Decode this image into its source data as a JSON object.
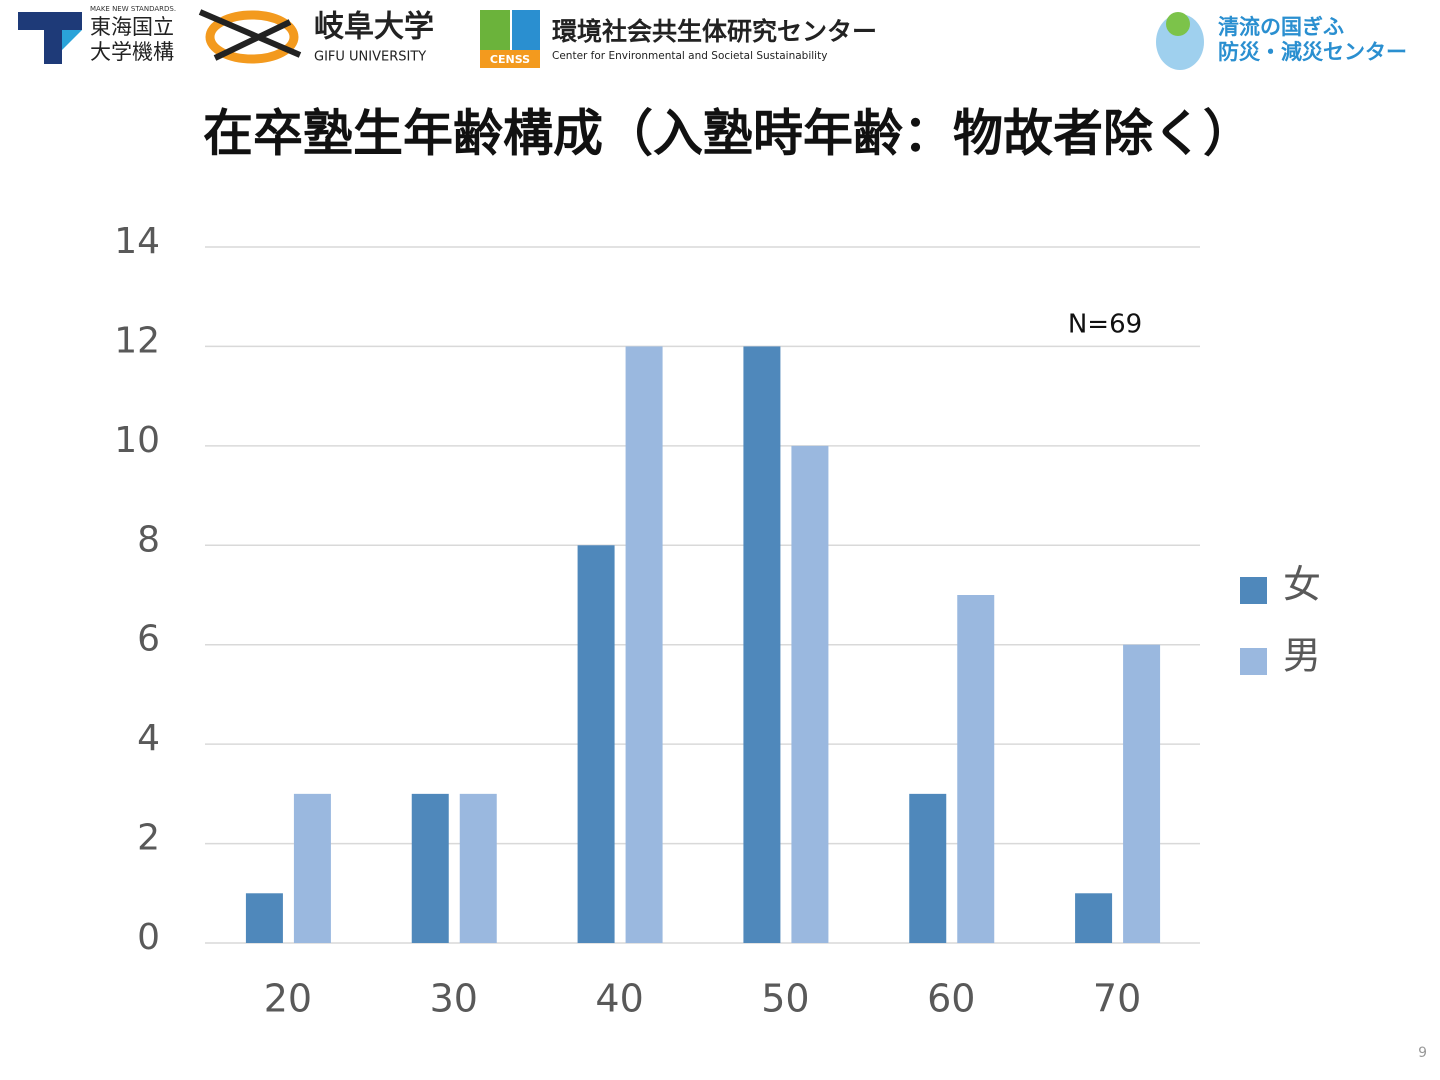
{
  "header": {
    "tokai_tagline": "MAKE NEW STANDARDS.",
    "tokai_name_1": "東海国立",
    "tokai_name_2": "大学機構",
    "gifu_name": "岐阜大学",
    "gifu_name_en": "GIFU UNIVERSITY",
    "censs_badge": "CENSS",
    "censs_name": "環境社会共生体研究センター",
    "censs_name_en": "Center for Environmental and Societal Sustainability",
    "bosai_name_1": "清流の国ぎふ",
    "bosai_name_2": "防災・減災センター"
  },
  "page_number": "9",
  "chart_data": {
    "type": "bar",
    "title": "在卒塾生年齢構成（入塾時年齢：物故者除く）",
    "annotation": "N=69",
    "categories": [
      "20",
      "30",
      "40",
      "50",
      "60",
      "70"
    ],
    "series": [
      {
        "name": "女",
        "color": "#4f88bb",
        "values": [
          1,
          3,
          8,
          12,
          3,
          1
        ]
      },
      {
        "name": "男",
        "color": "#9ab8df",
        "values": [
          3,
          3,
          12,
          10,
          7,
          6
        ]
      }
    ],
    "ylim": [
      0,
      14
    ],
    "yticks": [
      0,
      2,
      4,
      6,
      8,
      10,
      12,
      14
    ],
    "grid": true,
    "legend": "right"
  }
}
